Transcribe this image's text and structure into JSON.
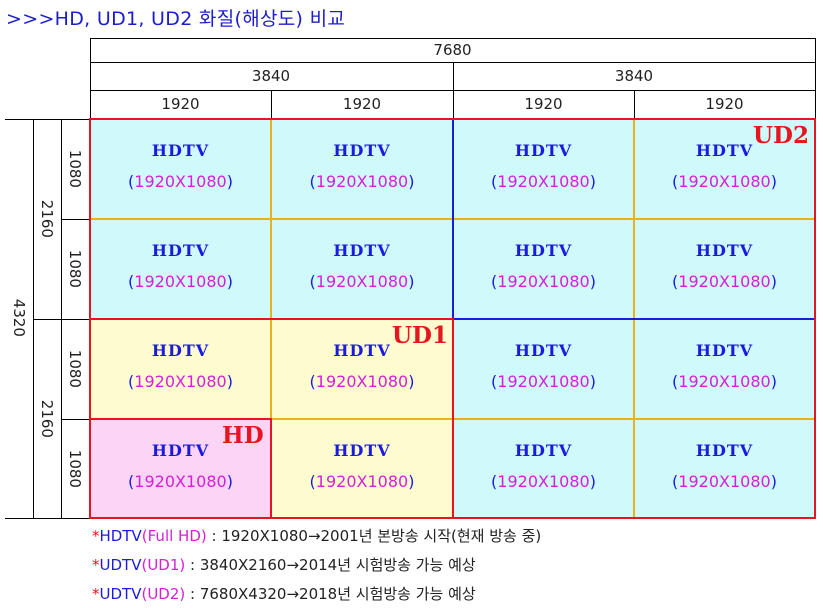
{
  "title": ">>>HD, UD1, UD2 화질(해상도) 비교",
  "columns": {
    "top": "7680",
    "mid": [
      "3840",
      "3840"
    ],
    "low": [
      "1920",
      "1920",
      "1920",
      "1920"
    ]
  },
  "rows": {
    "outer": "4320",
    "mid": [
      "2160",
      "2160"
    ],
    "low": [
      "1080",
      "1080",
      "1080",
      "1080"
    ]
  },
  "cell": {
    "name": "HDTV",
    "res_open": "(",
    "res_value": "1920X1080",
    "res_close": ")"
  },
  "tags": {
    "hd": "HD",
    "ud1": "UD1",
    "ud2": "UD2"
  },
  "colors": {
    "hd": "#fbd4f6",
    "ud1": "#fefccf",
    "ud2": "#cff9fb",
    "grid_blue": "#1a1ae0",
    "grid_gold": "#e8b21e",
    "frame_red": "#e8141e"
  },
  "legend": [
    {
      "star": "*",
      "key": "HDTV",
      "open": "(",
      "inner": "Full HD",
      "close": ")",
      "text": " : 1920X1080→2001년 본방송 시작(현재 방송 중)"
    },
    {
      "star": "*",
      "key": "UDTV",
      "open": "(",
      "inner": "UD1",
      "close": ")",
      "text": " : 3840X2160→2014년 시험방송 가능 예상"
    },
    {
      "star": "*",
      "key": "UDTV",
      "open": "(",
      "inner": "UD2",
      "close": ")",
      "text": " : 7680X4320→2018년 시험방송 가능 예상"
    }
  ]
}
